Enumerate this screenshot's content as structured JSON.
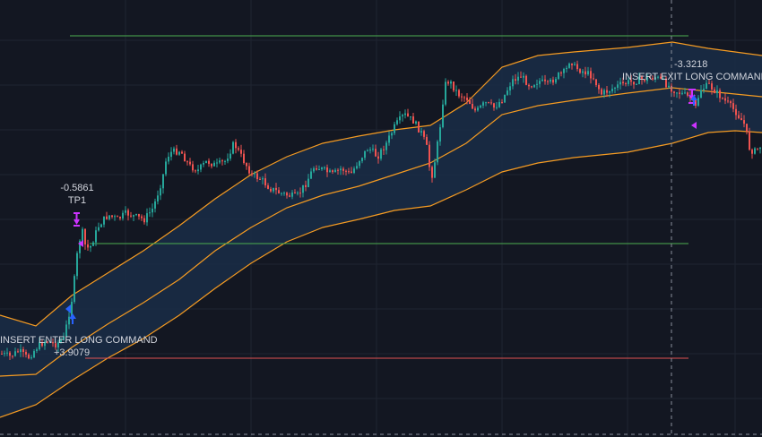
{
  "colors": {
    "background": "#131722",
    "grid": "#1f2431",
    "bull": "#26a69a",
    "bear": "#ef5350",
    "band_line": "#f59b22",
    "band_fill": "#1a2d47",
    "take_profit_line": "#4caf50",
    "stop_line": "#e05252",
    "marker": "#cc33ff",
    "entry_arrow": "#2962ff"
  },
  "annotations": {
    "tp_value": "-0.5861",
    "tp_label": "TP1",
    "entry_label": "INSERT ENTER LONG COMMAND",
    "entry_value": "+3.9079",
    "exit_value": "-3.3218",
    "exit_label": "INSERT EXIT LONG COMMAND"
  },
  "chart_data": {
    "type": "candlestick",
    "title": "",
    "xlabel": "",
    "ylabel": "",
    "ylim": [
      -470,
      0
    ],
    "grid": true,
    "x": [
      0,
      10,
      20,
      30,
      40,
      50,
      60,
      70,
      75,
      80,
      85,
      90,
      95,
      100,
      110,
      120,
      130,
      140,
      150,
      160,
      170,
      180,
      185,
      190,
      200,
      210,
      220,
      230,
      240,
      250,
      260,
      270,
      280,
      290,
      300,
      310,
      320,
      330,
      340,
      350,
      360,
      370,
      380,
      390,
      400,
      410,
      420,
      430,
      440,
      450,
      460,
      470,
      475,
      480,
      485,
      490,
      495,
      500,
      510,
      520,
      530,
      540,
      550,
      560,
      570,
      580,
      590,
      600,
      610,
      620,
      630,
      635,
      640,
      650,
      660,
      670,
      680,
      690,
      700,
      710,
      720,
      730,
      740,
      750,
      760,
      770,
      775,
      780,
      790,
      800,
      810,
      820,
      830,
      835,
      840,
      850
    ],
    "series": [
      {
        "values": [
          -395,
          -398,
          -392,
          -400,
          -388,
          -380,
          -385,
          -378,
          -355,
          -330,
          -285,
          -255,
          -278,
          -275,
          -250,
          -240,
          -245,
          -238,
          -242,
          -245,
          -232,
          -200,
          -175,
          -170,
          -168,
          -185,
          -190,
          -180,
          -185,
          -180,
          -160,
          -178,
          -195,
          -200,
          -210,
          -215,
          -218,
          -220,
          -205,
          -185,
          -190,
          -195,
          -188,
          -195,
          -178,
          -165,
          -175,
          -160,
          -140,
          -128,
          -135,
          -150,
          -165,
          -200,
          -175,
          -140,
          -95,
          -90,
          -105,
          -110,
          -125,
          -115,
          -120,
          -110,
          -90,
          -85,
          -95,
          -90,
          -95,
          -85,
          -80,
          -65,
          -75,
          -80,
          -85,
          -105,
          -100,
          -95,
          -92,
          -90,
          -88,
          -86,
          -92,
          -100,
          -105,
          -110,
          -120,
          -100,
          -95,
          -105,
          -115,
          -125,
          -140,
          -165,
          -170,
          -160
        ]
      }
    ],
    "upper_band": [
      [
        0,
        -352
      ],
      [
        40,
        -364
      ],
      [
        80,
        -330
      ],
      [
        120,
        -305
      ],
      [
        160,
        -280
      ],
      [
        200,
        -252
      ],
      [
        240,
        -222
      ],
      [
        280,
        -195
      ],
      [
        320,
        -175
      ],
      [
        360,
        -160
      ],
      [
        400,
        -152
      ],
      [
        440,
        -145
      ],
      [
        480,
        -140
      ],
      [
        520,
        -115
      ],
      [
        560,
        -75
      ],
      [
        600,
        -62
      ],
      [
        640,
        -58
      ],
      [
        700,
        -53
      ],
      [
        750,
        -47
      ],
      [
        790,
        -54
      ],
      [
        820,
        -58
      ],
      [
        850,
        -62
      ]
    ],
    "middle_band": [
      [
        0,
        -420
      ],
      [
        40,
        -418
      ],
      [
        80,
        -388
      ],
      [
        120,
        -362
      ],
      [
        160,
        -338
      ],
      [
        200,
        -312
      ],
      [
        240,
        -280
      ],
      [
        280,
        -254
      ],
      [
        320,
        -232
      ],
      [
        360,
        -218
      ],
      [
        400,
        -208
      ],
      [
        440,
        -195
      ],
      [
        480,
        -182
      ],
      [
        520,
        -160
      ],
      [
        560,
        -128
      ],
      [
        600,
        -118
      ],
      [
        640,
        -112
      ],
      [
        700,
        -104
      ],
      [
        750,
        -98
      ],
      [
        790,
        -102
      ],
      [
        820,
        -105
      ],
      [
        850,
        -108
      ]
    ],
    "lower_band": [
      [
        0,
        -466
      ],
      [
        40,
        -452
      ],
      [
        80,
        -425
      ],
      [
        120,
        -400
      ],
      [
        160,
        -378
      ],
      [
        200,
        -352
      ],
      [
        240,
        -322
      ],
      [
        280,
        -294
      ],
      [
        320,
        -270
      ],
      [
        360,
        -254
      ],
      [
        400,
        -245
      ],
      [
        440,
        -235
      ],
      [
        480,
        -230
      ],
      [
        520,
        -212
      ],
      [
        560,
        -192
      ],
      [
        600,
        -182
      ],
      [
        640,
        -176
      ],
      [
        700,
        -170
      ],
      [
        750,
        -160
      ],
      [
        790,
        -148
      ],
      [
        820,
        -146
      ],
      [
        850,
        -148
      ]
    ],
    "hlines": [
      {
        "y": -40,
        "x_start": 78,
        "x_end": 768,
        "kind": "take_profit"
      },
      {
        "y": -272,
        "x_start": 100,
        "x_end": 768,
        "kind": "entry"
      },
      {
        "y": -400,
        "x_start": 95,
        "x_end": 768,
        "kind": "stop"
      }
    ],
    "cursor_x": 749
  }
}
